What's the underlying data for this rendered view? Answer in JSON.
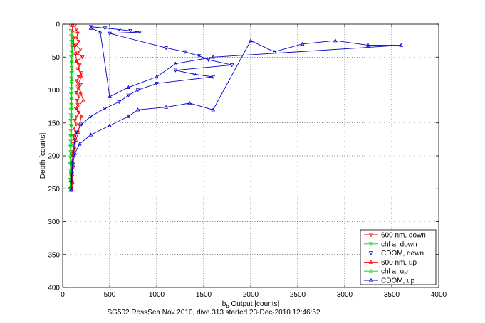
{
  "chart_data": {
    "type": "line",
    "xlabel_main": "b",
    "xlabel_sub": "b",
    "xlabel_rest": " Output [counts]",
    "ylabel": "Depth [counts]",
    "footer": "SG502 RossSea Nov 2010, dive 313 started 23-Dec-2010 12:46:52",
    "xlim": [
      0,
      4000
    ],
    "ylim": [
      0,
      400
    ],
    "y_reversed": true,
    "grid": true,
    "legend_position": "bottom-right",
    "x_ticks": [
      "0",
      "500",
      "1000",
      "1500",
      "2000",
      "2500",
      "3000",
      "3500",
      "4000"
    ],
    "y_ticks": [
      "0",
      "50",
      "100",
      "150",
      "200",
      "250",
      "300",
      "350",
      "400"
    ],
    "series": [
      {
        "name": "600 nm, down",
        "color": "#ff0000",
        "marker": "triangle-down",
        "x": [
          130,
          145,
          160,
          150,
          170,
          140,
          190,
          160,
          210,
          150,
          180,
          160,
          200,
          170,
          150,
          190,
          165,
          145,
          175,
          155,
          160,
          140,
          170,
          150,
          130,
          145,
          120,
          140,
          115,
          130,
          110,
          120,
          100,
          110,
          95,
          105,
          90,
          100,
          90,
          95
        ],
        "y": [
          2,
          8,
          14,
          20,
          26,
          32,
          38,
          44,
          50,
          56,
          62,
          68,
          74,
          80,
          86,
          92,
          98,
          104,
          110,
          116,
          122,
          128,
          134,
          140,
          146,
          152,
          158,
          164,
          170,
          176,
          182,
          188,
          194,
          200,
          210,
          220,
          230,
          240,
          248,
          252
        ]
      },
      {
        "name": "chl a, down",
        "color": "#00cc00",
        "marker": "triangle-down",
        "x": [
          85,
          88,
          90,
          92,
          95,
          92,
          90,
          94,
          96,
          92,
          90,
          93,
          90,
          88,
          92,
          90,
          88,
          87,
          85,
          88,
          86,
          84,
          85,
          82,
          84,
          82,
          80,
          82,
          80,
          78
        ],
        "y": [
          2,
          10,
          18,
          26,
          34,
          42,
          50,
          58,
          66,
          74,
          82,
          90,
          98,
          106,
          114,
          122,
          130,
          138,
          146,
          154,
          162,
          170,
          178,
          186,
          194,
          202,
          212,
          222,
          236,
          250
        ]
      },
      {
        "name": "CDOM, down",
        "color": "#0000cc",
        "marker": "triangle-down",
        "x": [
          300,
          450,
          600,
          720,
          820,
          500,
          1100,
          1300,
          1450,
          1550,
          1800,
          1200,
          1400,
          1600,
          1000,
          800,
          700,
          600,
          450,
          300,
          200,
          150,
          130,
          120,
          110,
          100,
          95,
          90
        ],
        "y": [
          4,
          6,
          8,
          10,
          12,
          14,
          36,
          42,
          48,
          54,
          62,
          70,
          76,
          80,
          90,
          100,
          108,
          118,
          128,
          140,
          152,
          164,
          176,
          188,
          200,
          215,
          232,
          250
        ]
      },
      {
        "name": "600 nm, up",
        "color": "#ff0000",
        "marker": "triangle-up",
        "x": [
          95,
          105,
          100,
          115,
          110,
          130,
          140,
          170,
          180,
          200,
          150,
          220,
          190,
          160,
          200,
          170,
          150,
          135,
          120,
          115,
          105,
          100
        ],
        "y": [
          252,
          240,
          228,
          215,
          200,
          188,
          176,
          164,
          152,
          140,
          128,
          116,
          104,
          92,
          80,
          68,
          56,
          44,
          32,
          20,
          10,
          2
        ]
      },
      {
        "name": "chl a, up",
        "color": "#00cc00",
        "marker": "triangle-up",
        "x": [
          82,
          84,
          86,
          90,
          88,
          90,
          92,
          94,
          93,
          96,
          95,
          98,
          96,
          100,
          97,
          102,
          100,
          98
        ],
        "y": [
          252,
          238,
          224,
          210,
          196,
          182,
          168,
          154,
          140,
          126,
          112,
          98,
          84,
          70,
          56,
          42,
          28,
          12
        ]
      },
      {
        "name": "CDOM, up",
        "color": "#0000cc",
        "marker": "triangle-up",
        "x": [
          90,
          95,
          100,
          110,
          130,
          180,
          300,
          500,
          700,
          800,
          1100,
          1350,
          1600,
          2000,
          2250,
          2550,
          2900,
          3250,
          3600,
          1600,
          1200,
          1000,
          700,
          500,
          400,
          300
        ],
        "y": [
          252,
          238,
          224,
          210,
          196,
          182,
          168,
          154,
          140,
          130,
          126,
          120,
          130,
          25,
          42,
          30,
          25,
          32,
          32,
          50,
          60,
          80,
          96,
          110,
          12,
          6
        ]
      }
    ]
  }
}
